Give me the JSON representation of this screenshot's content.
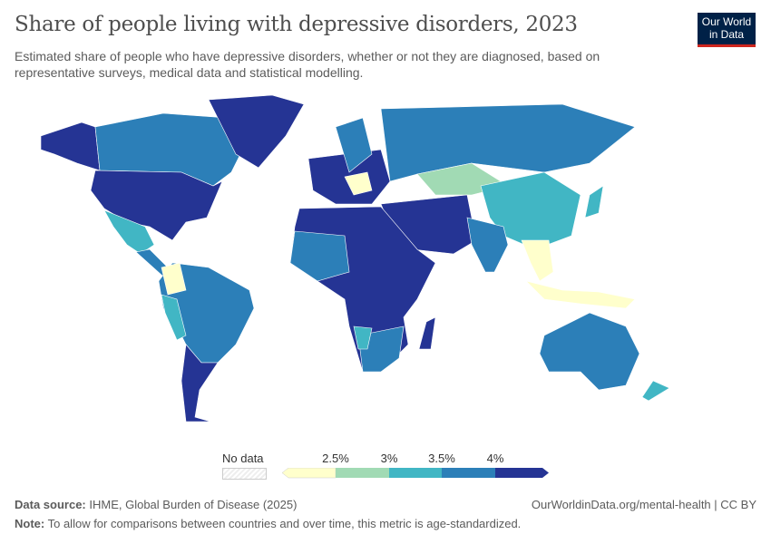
{
  "header": {
    "title": "Share of people living with depressive disorders, 2023",
    "subtitle": "Estimated share of people who have depressive disorders, whether or not they are diagnosed, based on representative surveys, medical data and statistical modelling.",
    "logo_line1": "Our World",
    "logo_line2": "in Data"
  },
  "legend": {
    "no_data": "No data",
    "ticks": [
      "2.5%",
      "3%",
      "3.5%",
      "4%"
    ],
    "colors": [
      "#ffffcc",
      "#a1dab4",
      "#41b6c4",
      "#2c7fb8",
      "#253494"
    ],
    "no_data_color": "#eeeeee"
  },
  "footer": {
    "source_label": "Data source:",
    "source": "IHME, Global Burden of Disease (2025)",
    "note_label": "Note:",
    "note": "To allow for comparisons between countries and over time, this metric is age-standardized.",
    "link": "OurWorldinData.org/mental-health | CC BY"
  }
}
